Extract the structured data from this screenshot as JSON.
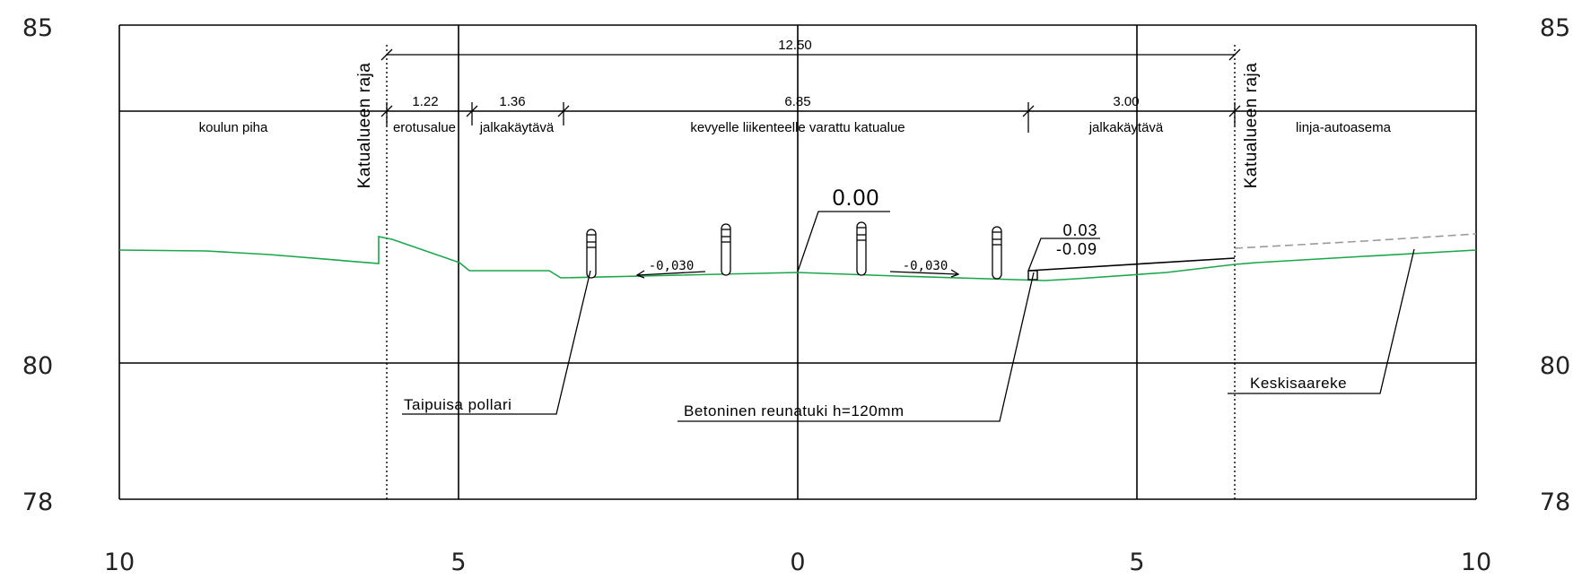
{
  "y_axis": {
    "left": [
      "85",
      "80",
      "78"
    ],
    "right": [
      "85",
      "80",
      "78"
    ]
  },
  "x_axis": [
    "10",
    "5",
    "0",
    "5",
    "10"
  ],
  "dimensions": {
    "total": "12.50",
    "parts": [
      "1.22",
      "1.36",
      "6.85",
      "3.00"
    ]
  },
  "zones": [
    "koulun piha",
    "erotusalue",
    "jalkakäytävä",
    "kevyelle liikenteelle varattu katualue",
    "jalkakäytävä",
    "linja-autoasema"
  ],
  "boundaries": {
    "left": "Katualueen raja",
    "right": "Katualueen raja"
  },
  "slopes": [
    "-0,030",
    "-0,030"
  ],
  "elevations": {
    "center": "0.00",
    "curb_top": "0.03",
    "curb_bottom": "-0.09"
  },
  "callouts": {
    "bollard": "Taipuisa pollari",
    "curb": "Betoninen reunatuki h=120mm",
    "island": "Keskisaareke"
  },
  "colors": {
    "ground": "#1aa64a",
    "existing": "#9a9a9a",
    "lines": "#000000"
  }
}
